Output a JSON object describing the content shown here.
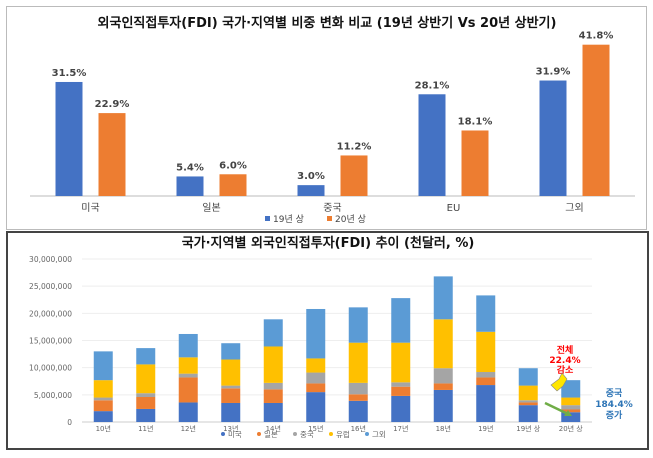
{
  "chart_data": [
    {
      "type": "bar",
      "title": "외국인직접투자(FDI) 국가·지역별 비중 변화 비교 (19년 상반기 Vs 20년 상반기)",
      "categories": [
        "미국",
        "일본",
        "중국",
        "EU",
        "그외"
      ],
      "series": [
        {
          "name": "19년 상",
          "values": [
            31.5,
            5.4,
            3.0,
            28.1,
            31.9
          ],
          "labels": [
            "31.5%",
            "5.4%",
            "3.0%",
            "28.1%",
            "31.9%"
          ],
          "color": "#4472C4"
        },
        {
          "name": "20년 상",
          "values": [
            22.9,
            6.0,
            11.2,
            18.1,
            41.8
          ],
          "labels": [
            "22.9%",
            "6.0%",
            "11.2%",
            "18.1%",
            "41.8%"
          ],
          "color": "#ED7D31"
        }
      ],
      "legend": "bottom",
      "grid": false
    },
    {
      "type": "bar",
      "stacked": true,
      "title": "국가·지역별 외국인직접투자(FDI) 추이 (천달러, %)",
      "categories": [
        "10년",
        "11년",
        "12년",
        "13년",
        "14년",
        "15년",
        "16년",
        "17년",
        "18년",
        "19년",
        "19년 상",
        "20년 상"
      ],
      "ylim": [
        0,
        30000000
      ],
      "yticks": [
        "0",
        "5,000,000",
        "10,000,000",
        "15,000,000",
        "20,000,000",
        "25,000,000",
        "30,000,000"
      ],
      "grid": true,
      "legend": "bottom",
      "series": [
        {
          "name": "미국",
          "color": "#4472C4",
          "values": [
            2000000,
            2400000,
            3600000,
            3500000,
            3500000,
            5500000,
            3900000,
            4800000,
            5900000,
            6800000,
            3100000,
            1800000
          ]
        },
        {
          "name": "일본",
          "color": "#ED7D31",
          "values": [
            2000000,
            2200000,
            4600000,
            2700000,
            2500000,
            1600000,
            1200000,
            1700000,
            1200000,
            1400000,
            500000,
            500000
          ]
        },
        {
          "name": "중국",
          "color": "#A5A5A5",
          "values": [
            500000,
            700000,
            700000,
            500000,
            1200000,
            2000000,
            2100000,
            800000,
            2800000,
            1000000,
            400000,
            800000
          ]
        },
        {
          "name": "유럽",
          "color": "#FFC000",
          "values": [
            3200000,
            5300000,
            3000000,
            4800000,
            6700000,
            2600000,
            7400000,
            7300000,
            9000000,
            7400000,
            2700000,
            1400000
          ]
        },
        {
          "name": "그외",
          "color": "#5B9BD5",
          "values": [
            5300000,
            3000000,
            4300000,
            3000000,
            5000000,
            9100000,
            6500000,
            8200000,
            7900000,
            6700000,
            3200000,
            3200000
          ]
        }
      ],
      "annotations": [
        {
          "lines": [
            "전체",
            "22.4%",
            "감소"
          ],
          "color": "#FF0000"
        },
        {
          "lines": [
            "중국",
            "184.4%",
            "증가"
          ],
          "color": "#2E75B6"
        }
      ]
    }
  ]
}
